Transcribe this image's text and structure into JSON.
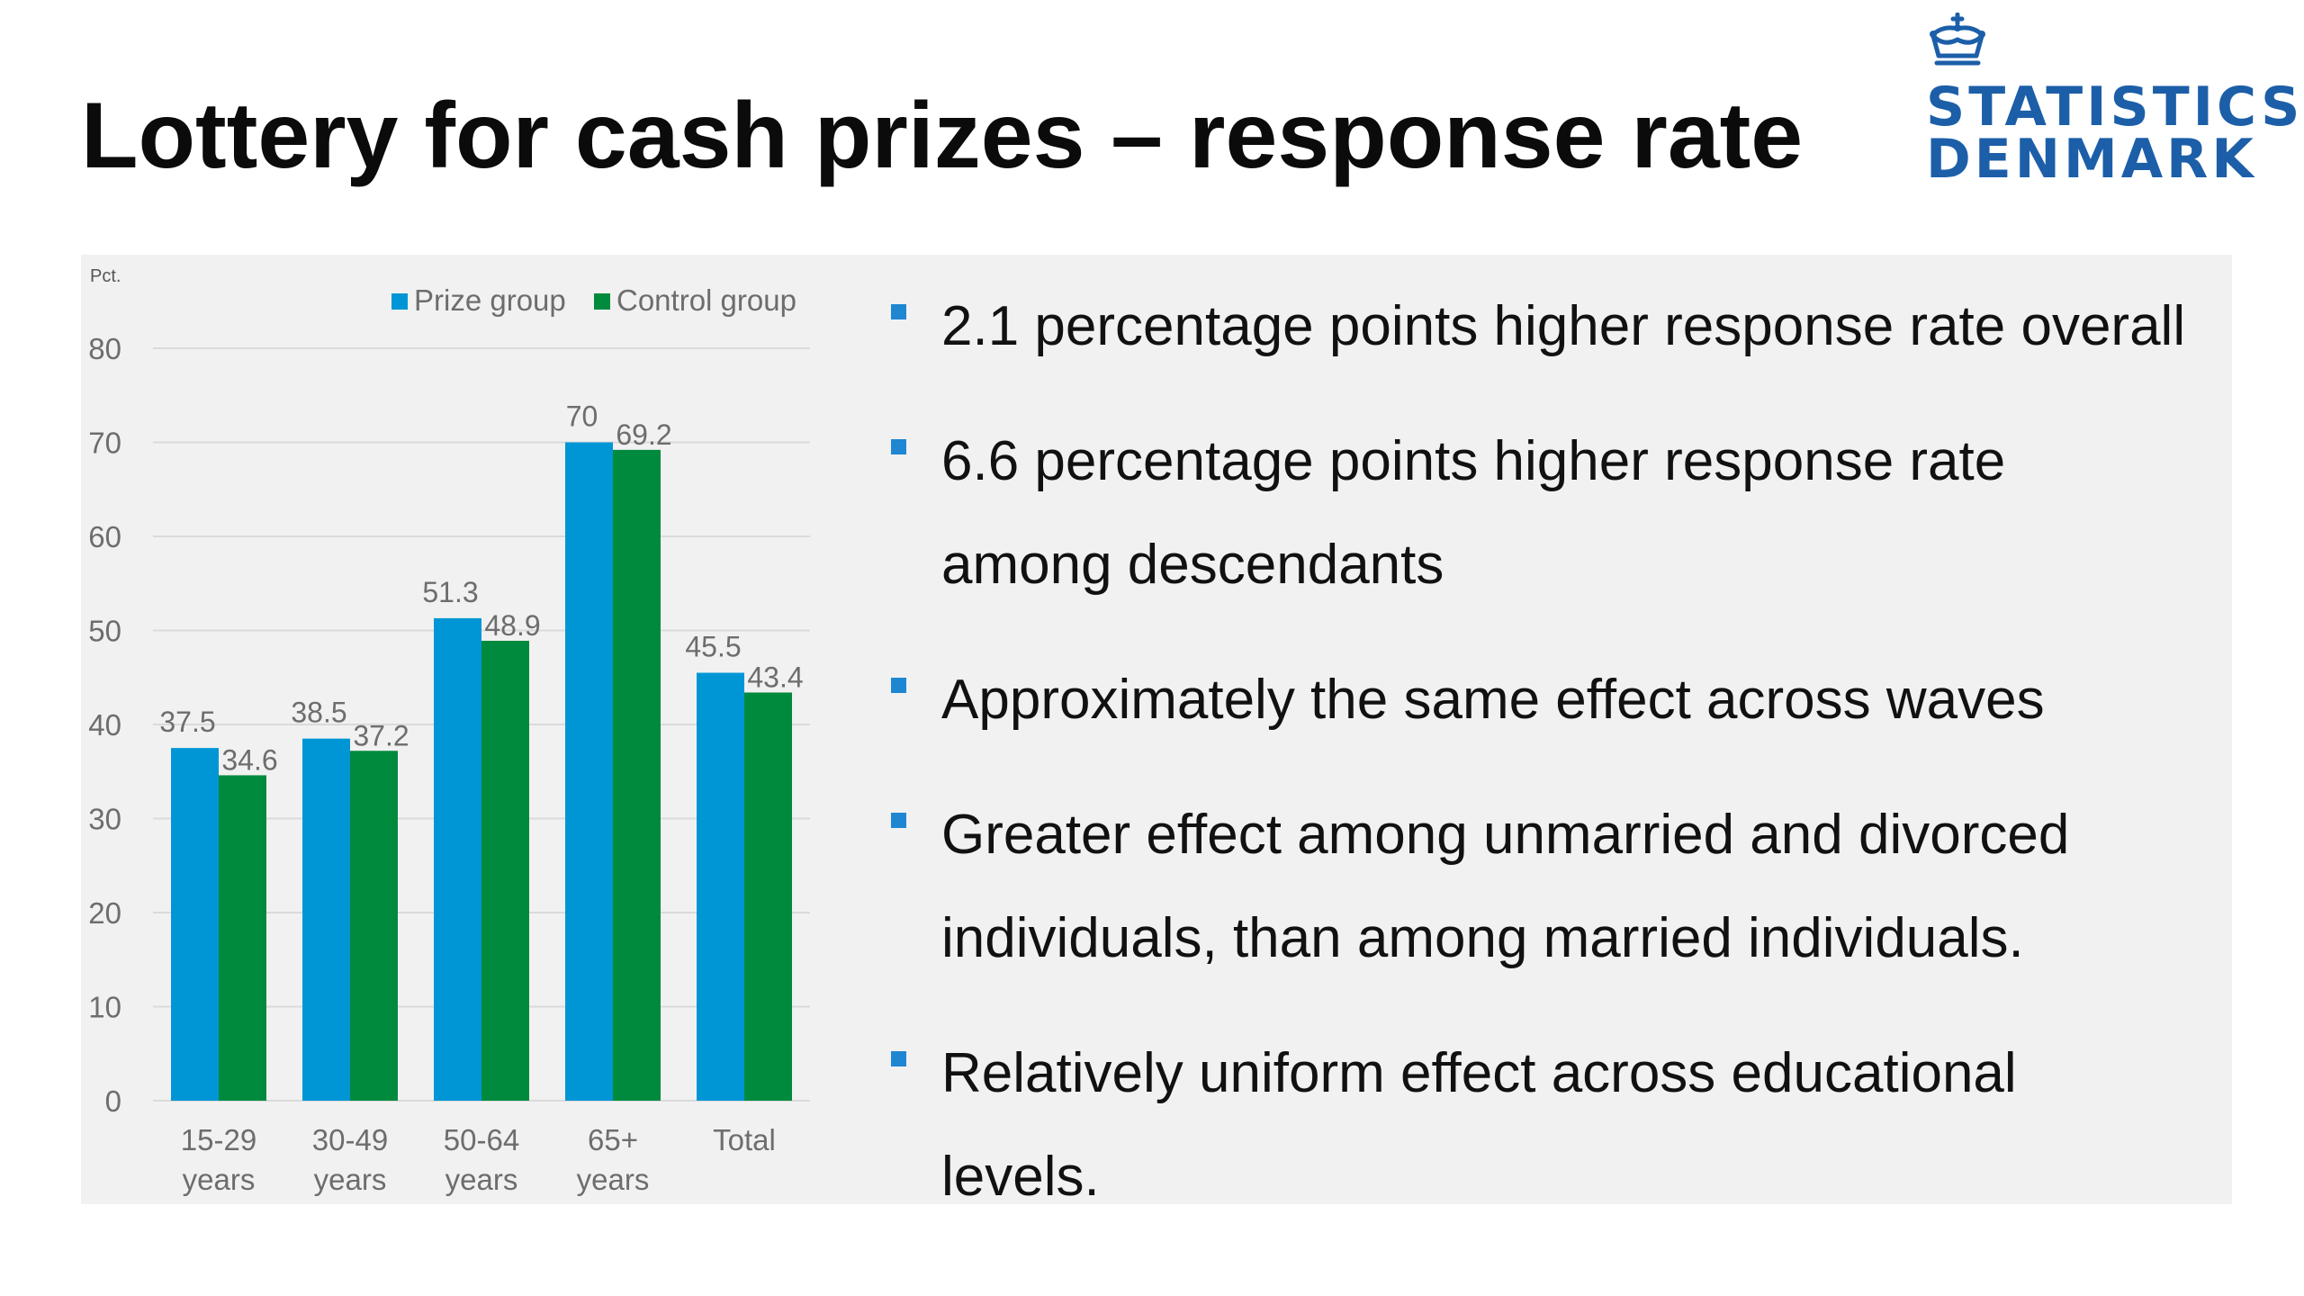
{
  "slide": {
    "title": "Lottery for cash prizes – response rate"
  },
  "logo": {
    "line1": "STATISTICS",
    "line2": "DENMARK",
    "icon": "crown-icon",
    "color": "#1c5fa8"
  },
  "bullets": [
    "2.1 percentage points higher response rate overall",
    "6.6 percentage points higher response rate among descendants",
    "Approximately the same effect across waves",
    "Greater effect among unmarried and divorced individuals, than among married individuals.",
    "Relatively uniform effect across educational levels."
  ],
  "colors": {
    "prize": "#0096d6",
    "control": "#008a3e",
    "panel": "#f1f1f1",
    "bullet": "#1f86d2"
  },
  "chart_data": {
    "type": "bar",
    "ylabel": "Pct.",
    "ylim": [
      0,
      80
    ],
    "yticks": [
      0,
      10,
      20,
      30,
      40,
      50,
      60,
      70,
      80
    ],
    "categories": [
      [
        "15-29",
        "years"
      ],
      [
        "30-49",
        "years"
      ],
      [
        "50-64",
        "years"
      ],
      [
        "65+",
        "years"
      ],
      [
        "Total"
      ]
    ],
    "series": [
      {
        "name": "Prize group",
        "color": "#0096d6",
        "values": [
          37.5,
          38.5,
          51.3,
          70,
          45.5
        ],
        "labels": [
          "37.5",
          "38.5",
          "51.3",
          "70",
          "45.5"
        ]
      },
      {
        "name": "Control group",
        "color": "#008a3e",
        "values": [
          34.6,
          37.2,
          48.9,
          69.2,
          43.4
        ],
        "labels": [
          "34.6",
          "37.2",
          "48.9",
          "69.2",
          "43.4"
        ]
      }
    ],
    "grid": true,
    "legend": "top"
  }
}
